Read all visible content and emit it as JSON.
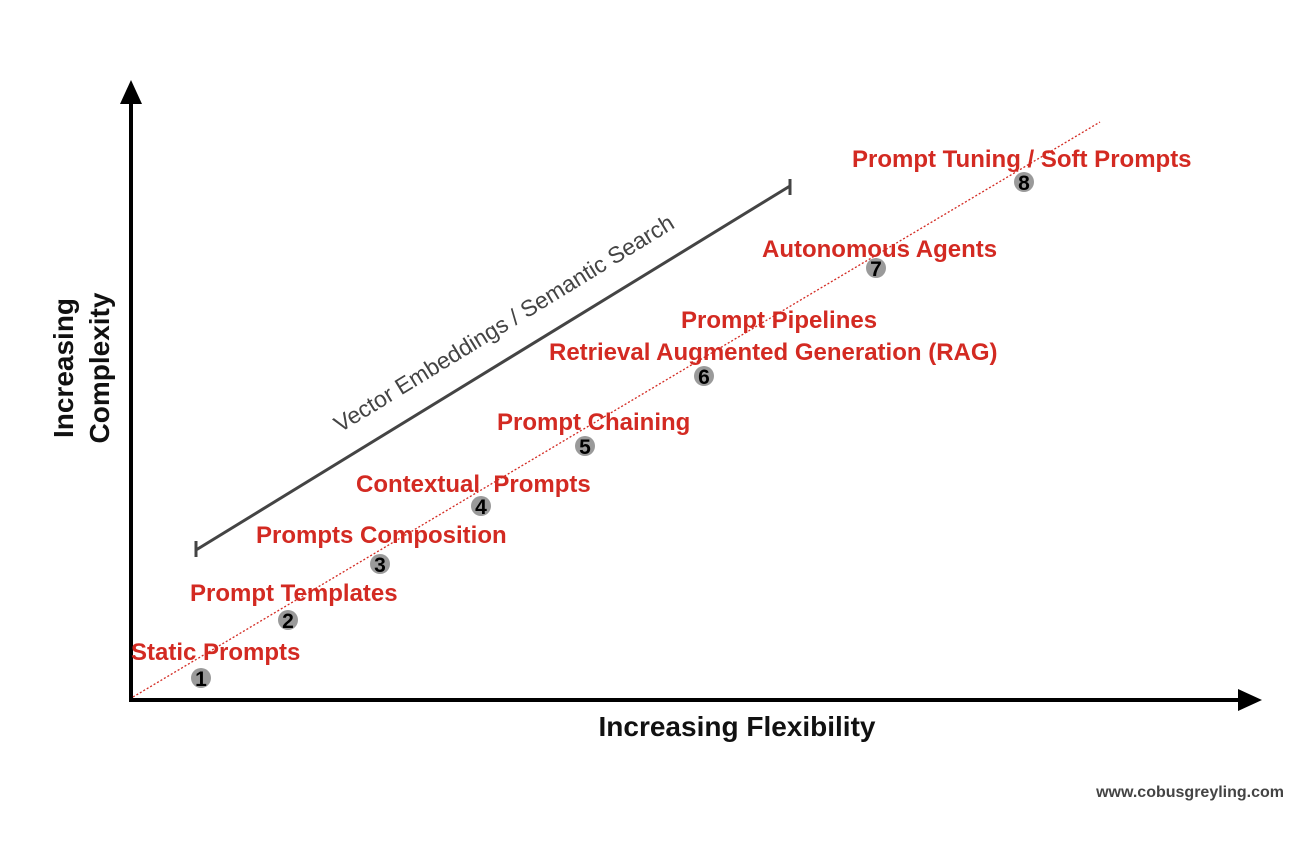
{
  "colors": {
    "label": "#d32a22",
    "axis": "#000000",
    "bracket": "#444444",
    "trend_line": "#d32a22",
    "marker": "#9a9a9a"
  },
  "axes": {
    "x_title": "Increasing Flexibility",
    "y_title_line1": "Increasing",
    "y_title_line2": "Complexity"
  },
  "band": {
    "label": "Vector Embeddings / Semantic Search"
  },
  "steps": [
    {
      "number": "1",
      "labels": [
        "Static Prompts"
      ]
    },
    {
      "number": "2",
      "labels": [
        "Prompt Templates"
      ]
    },
    {
      "number": "3",
      "labels": [
        "Prompts Composition"
      ]
    },
    {
      "number": "4",
      "labels": [
        "Contextual  Prompts"
      ]
    },
    {
      "number": "5",
      "labels": [
        "Prompt Chaining"
      ]
    },
    {
      "number": "6",
      "labels": [
        "Prompt Pipelines",
        "Retrieval Augmented Generation (RAG)"
      ]
    },
    {
      "number": "7",
      "labels": [
        "Autonomous Agents"
      ]
    },
    {
      "number": "8",
      "labels": [
        "Prompt Tuning / Soft Prompts"
      ]
    }
  ],
  "footer": {
    "website": "www.cobusgreyling.com"
  }
}
